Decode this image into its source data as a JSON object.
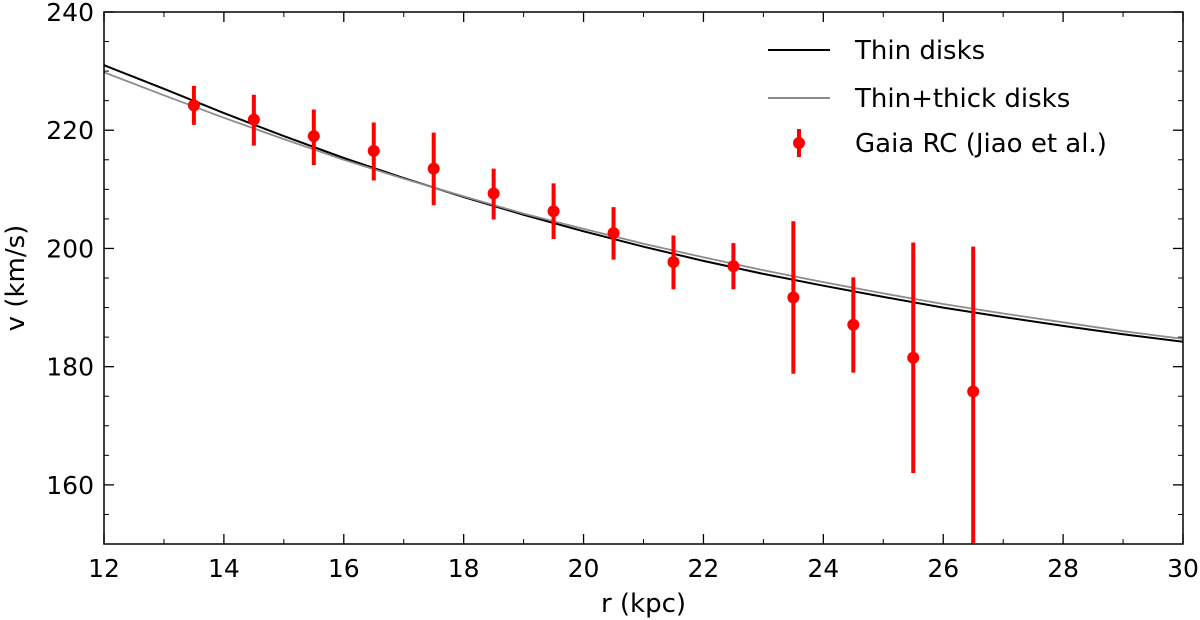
{
  "chart_data": {
    "type": "line",
    "title": "",
    "xlabel": "r (kpc)",
    "ylabel": "v (km/s)",
    "xlim": [
      12,
      30
    ],
    "ylim": [
      150,
      240
    ],
    "x_ticks": [
      12,
      14,
      16,
      18,
      20,
      22,
      24,
      26,
      28,
      30
    ],
    "y_ticks": [
      160,
      180,
      200,
      220,
      240
    ],
    "x_minor_step": 1,
    "y_minor_step": 5,
    "grid": false,
    "legend_position": "top-right",
    "series": [
      {
        "name": "Thin disks",
        "kind": "line",
        "color": "#000000",
        "x": [
          12,
          13,
          14,
          15,
          16,
          17,
          18,
          19,
          20,
          21,
          22,
          23,
          24,
          25,
          26,
          27,
          28,
          29,
          30
        ],
        "y": [
          231.0,
          227.0,
          222.9,
          219.0,
          215.3,
          211.9,
          208.7,
          205.7,
          202.9,
          200.3,
          197.9,
          195.7,
          193.7,
          191.8,
          190.0,
          188.4,
          186.9,
          185.5,
          184.2
        ]
      },
      {
        "name": "Thin+thick disks",
        "kind": "line",
        "color": "#8c8c8c",
        "x": [
          12,
          13,
          14,
          15,
          16,
          17,
          18,
          19,
          20,
          21,
          22,
          23,
          24,
          25,
          26,
          27,
          28,
          29,
          30
        ],
        "y": [
          229.8,
          225.9,
          222.1,
          218.5,
          215.0,
          211.8,
          208.8,
          205.9,
          203.3,
          200.8,
          198.5,
          196.3,
          194.3,
          192.4,
          190.6,
          189.0,
          187.5,
          186.0,
          184.7
        ]
      },
      {
        "name": "Gaia RC (Jiao et al.)",
        "kind": "errorbar",
        "color": "#ff0000",
        "x": [
          13.5,
          14.5,
          15.5,
          16.5,
          17.5,
          18.5,
          19.5,
          20.5,
          21.5,
          22.5,
          23.5,
          24.5,
          25.5,
          26.5
        ],
        "y": [
          224.2,
          221.8,
          219.0,
          216.5,
          213.5,
          209.3,
          206.3,
          202.6,
          197.7,
          197.0,
          191.7,
          187.1,
          181.5,
          175.8
        ],
        "y_upper": [
          227.5,
          226.0,
          223.5,
          221.3,
          219.6,
          213.5,
          211.0,
          207.0,
          202.2,
          200.9,
          204.6,
          195.1,
          201.0,
          200.3
        ],
        "y_lower": [
          220.9,
          217.4,
          214.1,
          211.5,
          207.3,
          204.9,
          201.6,
          198.1,
          193.1,
          193.1,
          178.8,
          179.0,
          162.0,
          150.0
        ]
      }
    ]
  }
}
